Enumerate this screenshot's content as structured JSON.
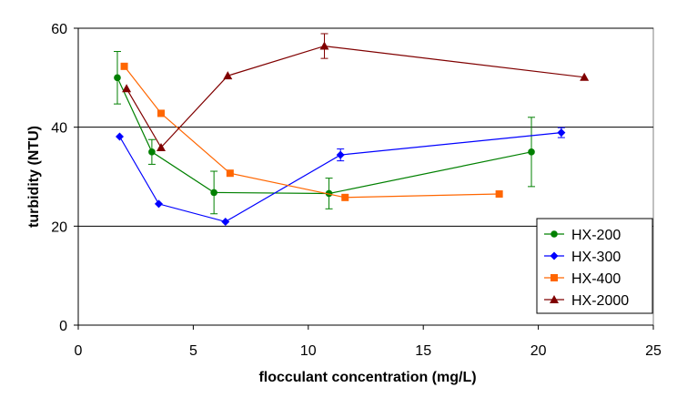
{
  "chart_data": {
    "type": "line",
    "title": "",
    "xlabel": "flocculant concentration (mg/L)",
    "ylabel": "turbidity (NTU)",
    "xlim": [
      0,
      25
    ],
    "ylim": [
      0,
      60
    ],
    "x_ticks": [
      "0",
      "5",
      "10",
      "15",
      "20",
      "25"
    ],
    "y_ticks": [
      "0",
      "20",
      "40",
      "60"
    ],
    "grid": "horizontal major lines",
    "legend_position": "bottom-right",
    "series": [
      {
        "name": "HX-200",
        "color": "#008000",
        "marker": "circle",
        "points": [
          {
            "x": 1.7,
            "y": 50.0,
            "err": 5.3
          },
          {
            "x": 3.2,
            "y": 35.0,
            "err": 2.5
          },
          {
            "x": 5.9,
            "y": 26.8,
            "err": 4.3
          },
          {
            "x": 10.9,
            "y": 26.6,
            "err": 3.1
          },
          {
            "x": 19.7,
            "y": 35.0,
            "err": 7.0
          }
        ]
      },
      {
        "name": "HX-300",
        "color": "#0000ff",
        "marker": "diamond",
        "points": [
          {
            "x": 1.8,
            "y": 38.1,
            "err": 0
          },
          {
            "x": 3.5,
            "y": 24.5,
            "err": 0
          },
          {
            "x": 6.4,
            "y": 20.9,
            "err": 0
          },
          {
            "x": 11.4,
            "y": 34.4,
            "err": 1.2
          },
          {
            "x": 21.0,
            "y": 38.9,
            "err": 1.0
          }
        ]
      },
      {
        "name": "HX-400",
        "color": "#ff6600",
        "marker": "square",
        "points": [
          {
            "x": 2.0,
            "y": 52.3,
            "err": 0
          },
          {
            "x": 3.6,
            "y": 42.8,
            "err": 0
          },
          {
            "x": 6.6,
            "y": 30.7,
            "err": 0
          },
          {
            "x": 11.6,
            "y": 25.8,
            "err": 0
          },
          {
            "x": 18.3,
            "y": 26.5,
            "err": 0
          }
        ]
      },
      {
        "name": "HX-2000",
        "color": "#800000",
        "marker": "triangle",
        "points": [
          {
            "x": 2.1,
            "y": 47.8,
            "err": 0
          },
          {
            "x": 3.6,
            "y": 35.9,
            "err": 0
          },
          {
            "x": 6.5,
            "y": 50.4,
            "err": 0
          },
          {
            "x": 10.7,
            "y": 56.4,
            "err": 2.5
          },
          {
            "x": 22.0,
            "y": 50.1,
            "err": 0
          }
        ]
      }
    ]
  }
}
